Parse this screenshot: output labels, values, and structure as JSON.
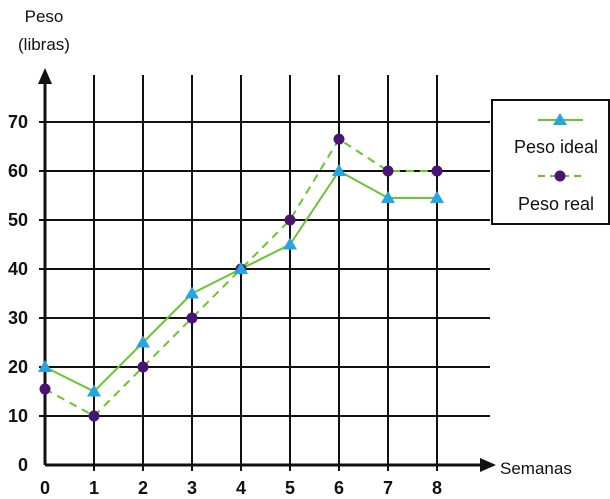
{
  "chart_data": {
    "type": "line",
    "y_axis_label_line1": "Peso",
    "y_axis_label_line2": "(libras)",
    "x_axis_label": "Semanas",
    "x": [
      0,
      1,
      2,
      3,
      4,
      5,
      6,
      7,
      8
    ],
    "x_tick_labels": [
      "0",
      "1",
      "2",
      "3",
      "4",
      "5",
      "6",
      "7",
      "8"
    ],
    "y_tick_values": [
      0,
      10,
      20,
      30,
      40,
      50,
      60,
      70
    ],
    "y_tick_labels": [
      "0",
      "10",
      "20",
      "30",
      "40",
      "50",
      "60",
      "70"
    ],
    "xlim": [
      0,
      9
    ],
    "ylim": [
      0,
      80
    ],
    "grid": true,
    "legend_position": "right",
    "series": [
      {
        "name": "Peso ideal",
        "values": [
          20,
          15,
          25,
          35,
          40,
          45,
          60,
          54.5,
          54.5
        ],
        "line_style": "solid",
        "marker": "triangle",
        "line_color": "#66c82a",
        "marker_color": "#26a6e0"
      },
      {
        "name": "Peso real",
        "values": [
          15.5,
          10,
          20,
          30,
          40,
          50,
          66.5,
          60,
          60
        ],
        "line_style": "dashed",
        "marker": "circle",
        "line_color": "#66c82a",
        "marker_color": "#4a1474"
      }
    ]
  }
}
